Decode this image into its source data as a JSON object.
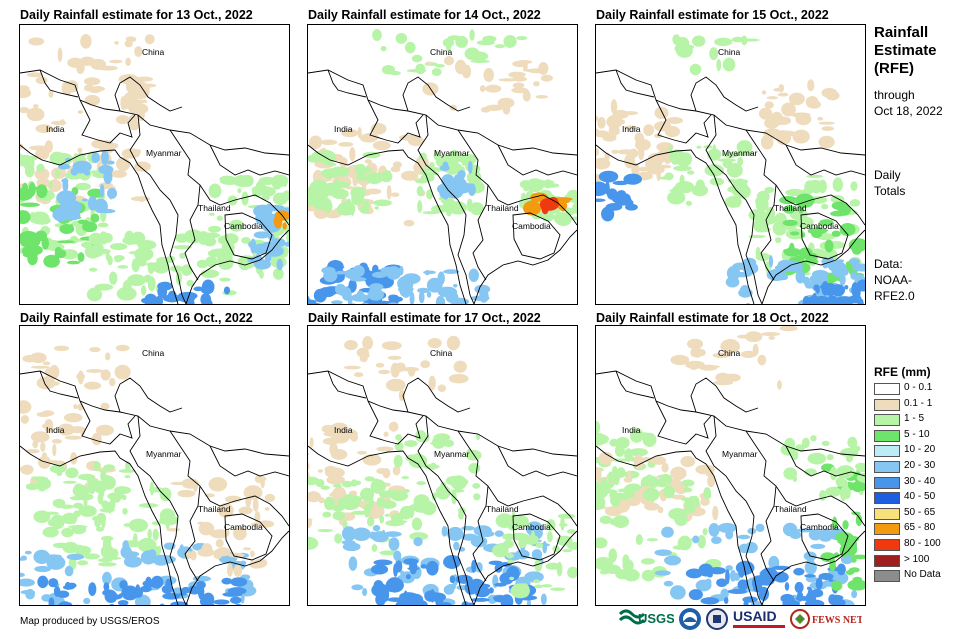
{
  "panels": [
    {
      "title": "Daily Rainfall estimate for 13 Oct., 2022",
      "labels": [
        "China",
        "India",
        "Myanmar",
        "Thailand",
        "Cambodia"
      ]
    },
    {
      "title": "Daily Rainfall estimate for 14 Oct., 2022",
      "labels": [
        "China",
        "India",
        "Myanmar",
        "Thailand",
        "Cambodia"
      ]
    },
    {
      "title": "Daily Rainfall estimate for 15 Oct., 2022",
      "labels": [
        "China",
        "India",
        "Myanmar",
        "Thailand",
        "Cambodia"
      ]
    },
    {
      "title": "Daily Rainfall estimate for 16 Oct., 2022",
      "labels": [
        "China",
        "India",
        "Myanmar",
        "Thailand",
        "Cambodia"
      ]
    },
    {
      "title": "Daily Rainfall estimate for 17 Oct., 2022",
      "labels": [
        "China",
        "India",
        "Myanmar",
        "Thailand",
        "Cambodia"
      ]
    },
    {
      "title": "Daily Rainfall estimate for 18 Oct., 2022",
      "labels": [
        "China",
        "India",
        "Myanmar",
        "Thailand",
        "Cambodia"
      ]
    }
  ],
  "sidebar": {
    "title_lines": [
      "Rainfall",
      "Estimate",
      "(RFE)"
    ],
    "through": "through",
    "through_date": "Oct 18, 2022",
    "daily": "Daily",
    "totals": "Totals",
    "data_label": "Data:",
    "data_source_1": "NOAA-",
    "data_source_2": "RFE2.0"
  },
  "legend": {
    "title": "RFE (mm)",
    "items": [
      {
        "label": "0 - 0.1",
        "color": "#ffffff"
      },
      {
        "label": "0.1 - 1",
        "color": "#eedcbc"
      },
      {
        "label": "1 - 5",
        "color": "#b8f4a8"
      },
      {
        "label": "5 - 10",
        "color": "#6ee46a"
      },
      {
        "label": "10 - 20",
        "color": "#bcecf6"
      },
      {
        "label": "20 - 30",
        "color": "#86c6f2"
      },
      {
        "label": "30 - 40",
        "color": "#4896ec"
      },
      {
        "label": "40 - 50",
        "color": "#1e5ee2"
      },
      {
        "label": "50 - 65",
        "color": "#f8e07a"
      },
      {
        "label": "65 - 80",
        "color": "#f49a10"
      },
      {
        "label": "80 - 100",
        "color": "#ee3a0e"
      },
      {
        "label": "> 100",
        "color": "#a02020"
      },
      {
        "label": "No Data",
        "color": "#8c8c8c"
      }
    ]
  },
  "footer": {
    "credit": "Map produced by USGS/EROS"
  },
  "logos": [
    "USGS",
    "NOAA",
    "USAID",
    "FEWS NET"
  ]
}
